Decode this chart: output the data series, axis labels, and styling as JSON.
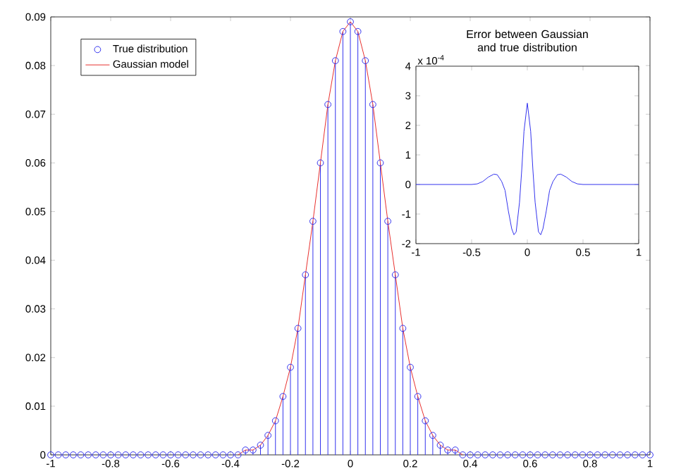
{
  "chart_data": [
    {
      "type": "line",
      "legend": "top left",
      "x": [
        -1,
        -0.975,
        -0.95,
        -0.925,
        -0.9,
        -0.875,
        -0.85,
        -0.825,
        -0.8,
        -0.775,
        -0.75,
        -0.725,
        -0.7,
        -0.675,
        -0.65,
        -0.625,
        -0.6,
        -0.575,
        -0.55,
        -0.525,
        -0.5,
        -0.475,
        -0.45,
        -0.425,
        -0.4,
        -0.375,
        -0.35,
        -0.325,
        -0.3,
        -0.275,
        -0.25,
        -0.225,
        -0.2,
        -0.175,
        -0.15,
        -0.125,
        -0.1,
        -0.075,
        -0.05,
        -0.025,
        0,
        0.025,
        0.05,
        0.075,
        0.1,
        0.125,
        0.15,
        0.175,
        0.2,
        0.225,
        0.25,
        0.275,
        0.3,
        0.325,
        0.35,
        0.375,
        0.4,
        0.425,
        0.45,
        0.475,
        0.5,
        0.525,
        0.55,
        0.575,
        0.6,
        0.625,
        0.65,
        0.675,
        0.7,
        0.725,
        0.75,
        0.775,
        0.8,
        0.825,
        0.85,
        0.875,
        0.9,
        0.925,
        0.95,
        0.975,
        1
      ],
      "series": [
        {
          "name": "True distribution",
          "type": "lollipop",
          "marker": "circle",
          "color": "#3333ee",
          "values": [
            0,
            0,
            0,
            0,
            0,
            0,
            0,
            0,
            0,
            0,
            0,
            0,
            0,
            0,
            0,
            0,
            0,
            0,
            0,
            0,
            0,
            0,
            0,
            0,
            0,
            0,
            0.001,
            0.001,
            0.002,
            0.004,
            0.007,
            0.012,
            0.018,
            0.026,
            0.037,
            0.048,
            0.06,
            0.072,
            0.081,
            0.087,
            0.089,
            0.087,
            0.081,
            0.072,
            0.06,
            0.048,
            0.037,
            0.026,
            0.018,
            0.012,
            0.007,
            0.004,
            0.002,
            0.001,
            0.001,
            0,
            0,
            0,
            0,
            0,
            0,
            0,
            0,
            0,
            0,
            0,
            0,
            0,
            0,
            0,
            0,
            0,
            0,
            0,
            0,
            0,
            0,
            0,
            0,
            0,
            0
          ]
        },
        {
          "name": "Gaussian model",
          "type": "line",
          "color": "#e8302e",
          "values": [
            null,
            null,
            null,
            null,
            null,
            null,
            null,
            null,
            null,
            null,
            null,
            null,
            null,
            null,
            null,
            null,
            null,
            null,
            null,
            null,
            null,
            null,
            null,
            null,
            null,
            0,
            0.001,
            0.001,
            0.002,
            0.004,
            0.007,
            0.012,
            0.018,
            0.026,
            0.037,
            0.048,
            0.06,
            0.072,
            0.081,
            0.087,
            0.089,
            0.087,
            0.081,
            0.072,
            0.06,
            0.048,
            0.037,
            0.026,
            0.018,
            0.012,
            0.007,
            0.004,
            0.002,
            0.001,
            0.001,
            0,
            null,
            null,
            null,
            null,
            null,
            null,
            null,
            null,
            null,
            null,
            null,
            null,
            null,
            null,
            null,
            null,
            null,
            null,
            null,
            null,
            null,
            null,
            null,
            null,
            null
          ]
        }
      ],
      "xlim": [
        -1,
        1
      ],
      "xticks": [
        -1,
        -0.8,
        -0.6,
        -0.4,
        -0.2,
        0,
        0.2,
        0.4,
        0.6,
        0.8,
        1
      ],
      "ylim": [
        0,
        0.09
      ],
      "yticks": [
        0,
        0.01,
        0.02,
        0.03,
        0.04,
        0.05,
        0.06,
        0.07,
        0.08,
        0.09
      ]
    },
    {
      "type": "line",
      "title": "Error between Gaussian and true distribution",
      "annotations": [
        "x 10$^{-4}$"
      ],
      "x": [
        -1,
        -0.5,
        -0.45,
        -0.4,
        -0.35,
        -0.3,
        -0.27,
        -0.23,
        -0.2,
        -0.17,
        -0.14,
        -0.12,
        -0.1,
        -0.07,
        -0.05,
        -0.03,
        0,
        0.03,
        0.05,
        0.07,
        0.1,
        0.12,
        0.14,
        0.17,
        0.2,
        0.23,
        0.27,
        0.3,
        0.35,
        0.4,
        0.45,
        0.5,
        1
      ],
      "series": [
        {
          "color": "#3333ee",
          "values": [
            0,
            0,
            0.02,
            0.1,
            0.25,
            0.35,
            0.33,
            0.1,
            -0.2,
            -0.9,
            -1.5,
            -1.7,
            -1.6,
            -0.6,
            0.5,
            1.8,
            2.75,
            1.8,
            0.5,
            -0.6,
            -1.6,
            -1.7,
            -1.5,
            -0.9,
            -0.2,
            0.1,
            0.33,
            0.35,
            0.25,
            0.1,
            0.02,
            0,
            0
          ]
        }
      ],
      "xlim": [
        -1,
        1
      ],
      "xticks": [
        -1,
        -0.5,
        0,
        0.5,
        1
      ],
      "ylim": [
        -2,
        4
      ],
      "yticks": [
        -2,
        -1,
        0,
        1,
        2,
        3,
        4
      ]
    }
  ]
}
